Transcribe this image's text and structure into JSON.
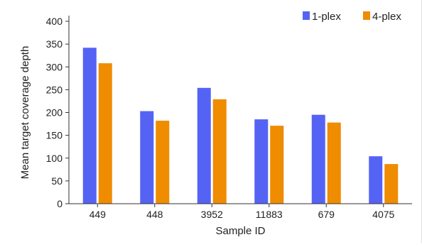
{
  "chart_data": {
    "type": "bar",
    "categories": [
      "449",
      "448",
      "3952",
      "11883",
      "679",
      "4075"
    ],
    "series": [
      {
        "name": "1-plex",
        "values": [
          342,
          203,
          254,
          185,
          195,
          104
        ]
      },
      {
        "name": "4-plex",
        "values": [
          308,
          182,
          229,
          171,
          178,
          87
        ]
      }
    ],
    "xlabel": "Sample ID",
    "ylabel": "Mean target coverage depth",
    "ylim": [
      0,
      400
    ],
    "yticks": [
      0,
      50,
      100,
      150,
      200,
      250,
      300,
      350,
      400
    ],
    "grid": false,
    "legend_position": "top-right",
    "colors": [
      "#5563f5",
      "#ef8c00"
    ]
  }
}
